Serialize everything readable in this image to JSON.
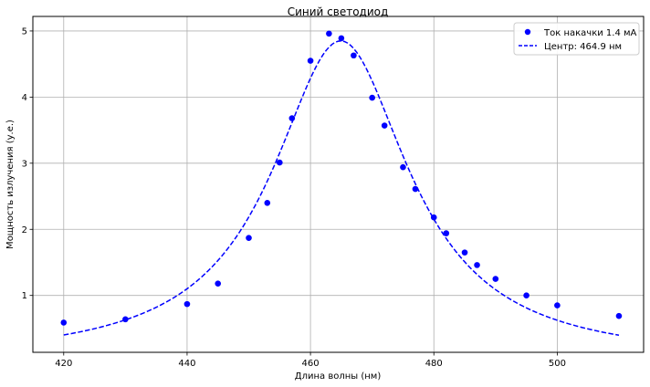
{
  "chart_data": {
    "type": "scatter",
    "title": "Синий светодиод",
    "xlabel": "Длина волны (нм)",
    "ylabel": "Мощность излучения (у.е.)",
    "xlim": [
      415,
      514
    ],
    "ylim": [
      0.14,
      5.22
    ],
    "xticks": [
      420,
      440,
      460,
      480,
      500
    ],
    "yticks": [
      1,
      2,
      3,
      4,
      5
    ],
    "grid": true,
    "legend_position": "top-right",
    "series": [
      {
        "name": "Ток накачки 1.4 мА",
        "kind": "scatter",
        "color": "#0000ff",
        "x": [
          420,
          430,
          440,
          445,
          450,
          453,
          455,
          457,
          460,
          463,
          465,
          467,
          470,
          472,
          475,
          477,
          480,
          482,
          485,
          487,
          490,
          495,
          500,
          510
        ],
        "y": [
          0.59,
          0.64,
          0.87,
          1.18,
          1.87,
          2.4,
          3.01,
          3.68,
          4.55,
          4.96,
          4.89,
          4.63,
          3.99,
          3.57,
          2.94,
          2.61,
          2.18,
          1.94,
          1.65,
          1.46,
          1.25,
          1.0,
          0.85,
          0.69
        ]
      },
      {
        "name": "Центр: 464.9 нм",
        "kind": "line",
        "style": "dashed",
        "color": "#0000ff",
        "model": "lorentzian",
        "center": 464.9,
        "amplitude": 4.85,
        "hwhm": 13.5,
        "x_range": [
          420,
          510
        ]
      }
    ]
  }
}
